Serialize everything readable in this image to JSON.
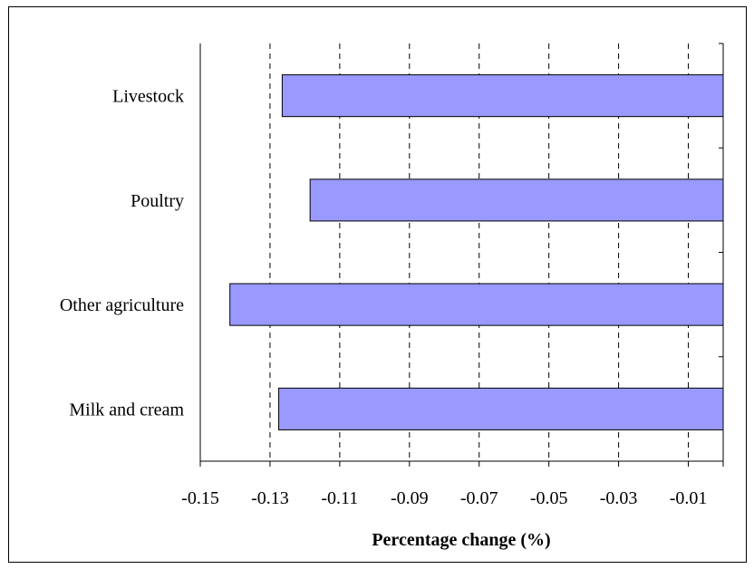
{
  "chart_data": {
    "type": "bar",
    "orientation": "horizontal",
    "categories": [
      "Livestock",
      "Poultry",
      "Other agriculture",
      "Milk and cream"
    ],
    "values": [
      -0.1265,
      -0.1185,
      -0.1415,
      -0.1275
    ],
    "xlabel": "Percentage change (%)",
    "xlim": [
      -0.15,
      0.0
    ],
    "xticks": [
      -0.15,
      -0.13,
      -0.11,
      -0.09,
      -0.07,
      -0.05,
      -0.03,
      -0.01
    ],
    "xtick_labels": [
      "-0.15",
      "-0.13",
      "-0.11",
      "-0.09",
      "-0.07",
      "-0.05",
      "-0.03",
      "-0.01"
    ],
    "gridlines": "vertical dashed",
    "bar_color": "#9999ff",
    "legend": "none"
  }
}
